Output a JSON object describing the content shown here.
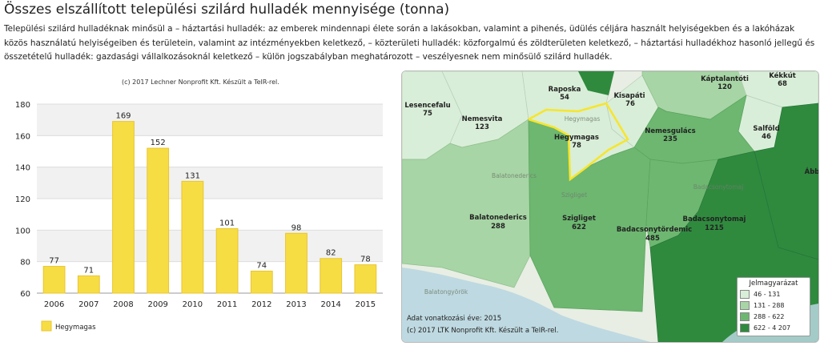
{
  "title": "Összes elszállított települési szilárd hulladék mennyisége (tonna)",
  "description": "Települési szilárd hulladéknak minősül a – háztartási hulladék: az emberek mindennapi élete során a lakásokban, valamint a pihenés, üdülés céljára használt helyiségekben és a lakóházak közös használatú helyiségeiben és területein, valamint az intézményekben keletkező, – közterületi hulladék: közforgalmú és zöldterületen keletkező, – háztartási hulladékhoz hasonló jellegű és összetételű hulladék: gazdasági vállalkozásoknál keletkező – külön jogszabályban meghatározott – veszélyesnek nem minősülő szilárd hulladék.",
  "chart_credit": "(c) 2017 Lechner Nonprofit Kft. Készült a TeIR-rel.",
  "chart_data": {
    "type": "bar",
    "categories": [
      "2006",
      "2007",
      "2008",
      "2009",
      "2010",
      "2011",
      "2012",
      "2013",
      "2014",
      "2015"
    ],
    "series": [
      {
        "name": "Hegymagas",
        "values": [
          77,
          71,
          169,
          152,
          131,
          101,
          74,
          98,
          82,
          78
        ]
      }
    ],
    "yticks": [
      60,
      80,
      100,
      120,
      140,
      160,
      180
    ],
    "ylim": [
      60,
      180
    ],
    "grid": true,
    "legend_position": "bottom-left",
    "bar_color": "#f7dd44",
    "bar_border_color": "#e8c532"
  },
  "map": {
    "settlements": [
      {
        "name": "Raposka",
        "value": "54"
      },
      {
        "name": "Kisapáti",
        "value": "76"
      },
      {
        "name": "Káptalantóti",
        "value": "120"
      },
      {
        "name": "Kékkút",
        "value": "68"
      },
      {
        "name": "Lesencefalu",
        "value": "75"
      },
      {
        "name": "Nemesvita",
        "value": "123"
      },
      {
        "name": "Hegymagas",
        "value": "78"
      },
      {
        "name": "Nemesgulács",
        "value": "235"
      },
      {
        "name": "Salföld",
        "value": "46"
      },
      {
        "name": "Ább",
        "value": ""
      },
      {
        "name": "Balatonederics",
        "value": "288"
      },
      {
        "name": "Szigliget",
        "value": "622"
      },
      {
        "name": "Badacsonytördemic",
        "value": "485"
      },
      {
        "name": "Badacsonytomaj",
        "value": "1215"
      }
    ],
    "faint_labels": [
      "Hegymagas",
      "Balatonederics",
      "Szigliget",
      "Badacsonytomaj",
      "Balatongyörök"
    ],
    "year_text": "Adat vonatkozási éve: 2015",
    "credit_text": "(c) 2017 LTK Nonprofit Kft. Készült a TeIR-rel.",
    "legend": {
      "title": "Jelmagyarázat",
      "items": [
        {
          "label": "46 -  131",
          "color": "#d9eed8"
        },
        {
          "label": "131 -  288",
          "color": "#a7d5a5"
        },
        {
          "label": "288 -  622",
          "color": "#6db770"
        },
        {
          "label": "622 - 4 207",
          "color": "#2f8a3e"
        }
      ]
    }
  }
}
